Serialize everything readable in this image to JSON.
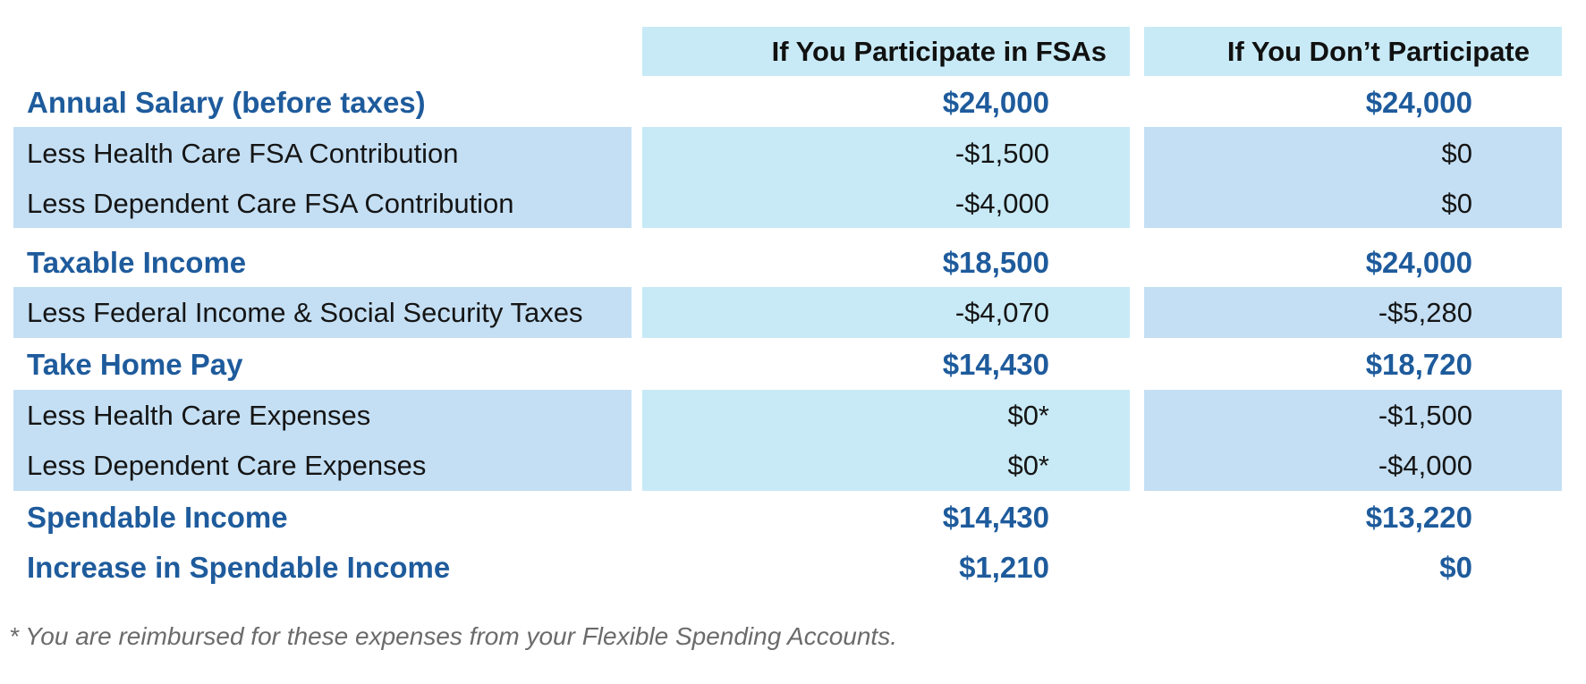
{
  "table": {
    "columns": [
      "If You Participate in FSAs",
      "If You Don’t Participate"
    ],
    "rows": [
      {
        "label": "Annual Salary (before taxes)",
        "participate": "$24,000",
        "dont_participate": "$24,000",
        "style": "summary"
      },
      {
        "label": "Less Health Care FSA Contribution",
        "participate": "-$1,500",
        "dont_participate": "$0",
        "style": "detail"
      },
      {
        "label": "Less Dependent Care FSA Contribution",
        "participate": "-$4,000",
        "dont_participate": "$0",
        "style": "detail"
      },
      {
        "label": "Taxable Income",
        "participate": "$18,500",
        "dont_participate": "$24,000",
        "style": "summary"
      },
      {
        "label": "Less Federal Income & Social Security Taxes",
        "participate": "-$4,070",
        "dont_participate": "-$5,280",
        "style": "detail"
      },
      {
        "label": "Take Home Pay",
        "participate": "$14,430",
        "dont_participate": "$18,720",
        "style": "summary"
      },
      {
        "label": "Less Health Care Expenses",
        "participate": "$0*",
        "dont_participate": "-$1,500",
        "style": "detail"
      },
      {
        "label": "Less Dependent Care Expenses",
        "participate": "$0*",
        "dont_participate": "-$4,000",
        "style": "detail"
      },
      {
        "label": "Spendable Income",
        "participate": "$14,430",
        "dont_participate": "$13,220",
        "style": "summary"
      },
      {
        "label": "Increase in Spendable Income",
        "participate": "$1,210",
        "dont_participate": "$0",
        "style": "summary"
      }
    ]
  },
  "footnote": "* You are reimbursed for these expenses from your Flexible Spending Accounts.",
  "colors": {
    "summary_text": "#1e5b9c",
    "detail_text": "#151515",
    "header_fill": "#c8eaf6",
    "label_band_fill": "#c4dff4",
    "footnote_text": "#6b6b6b"
  }
}
